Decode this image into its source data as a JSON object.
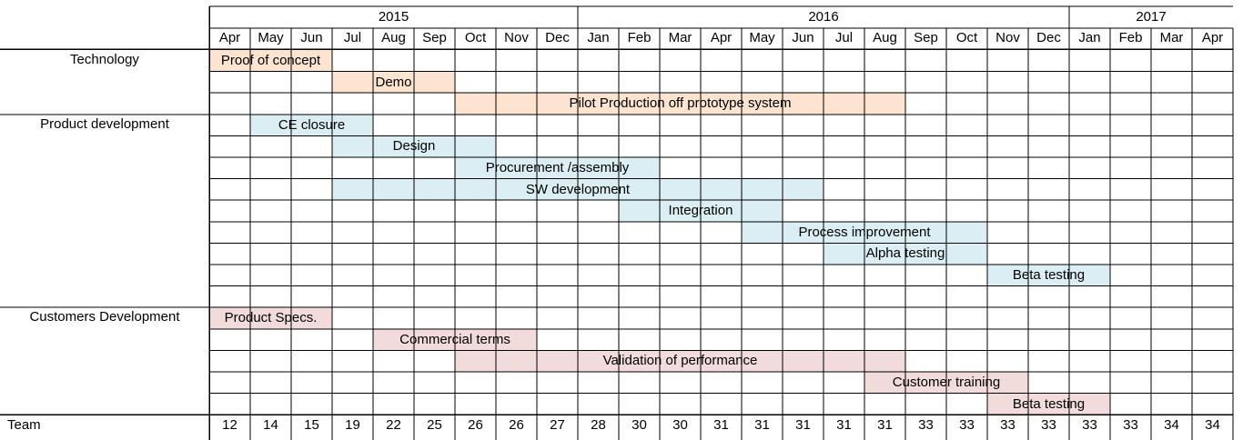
{
  "chart_data": {
    "type": "table",
    "title": "",
    "years": [
      {
        "label": "2015",
        "start": 0,
        "end": 9
      },
      {
        "label": "2016",
        "start": 9,
        "end": 21
      },
      {
        "label": "2017",
        "start": 21,
        "end": 25
      }
    ],
    "months": [
      "Apr",
      "May",
      "Jun",
      "Jul",
      "Aug",
      "Sep",
      "Oct",
      "Nov",
      "Dec",
      "Jan",
      "Feb",
      "Mar",
      "Apr",
      "May",
      "Jun",
      "Jul",
      "Aug",
      "Sep",
      "Oct",
      "Nov",
      "Dec",
      "Jan",
      "Feb",
      "Mar",
      "Apr"
    ],
    "sections": [
      {
        "label": "Technology",
        "row": 0
      },
      {
        "label": "Product development",
        "row": 3
      },
      {
        "label": "Customers Development",
        "row": 12
      }
    ],
    "tasks": [
      {
        "label": "Proof of concept",
        "row": 0,
        "start": 0,
        "end": 3,
        "group": "technology"
      },
      {
        "label": "Demo",
        "row": 1,
        "start": 3,
        "end": 6,
        "group": "technology"
      },
      {
        "label": "Pilot Production off prototype system",
        "row": 2,
        "start": 6,
        "end": 17,
        "group": "technology"
      },
      {
        "label": "CE closure",
        "row": 3,
        "start": 1,
        "end": 4,
        "group": "product"
      },
      {
        "label": "Design",
        "row": 4,
        "start": 3,
        "end": 7,
        "group": "product"
      },
      {
        "label": "Procurement /assembly",
        "row": 5,
        "start": 6,
        "end": 11,
        "group": "product"
      },
      {
        "label": "SW development",
        "row": 6,
        "start": 3,
        "end": 15,
        "group": "product"
      },
      {
        "label": "Integration",
        "row": 7,
        "start": 10,
        "end": 14,
        "group": "product"
      },
      {
        "label": "Process improvement",
        "row": 8,
        "start": 13,
        "end": 19,
        "group": "product"
      },
      {
        "label": "Alpha testing",
        "row": 9,
        "start": 15,
        "end": 19,
        "group": "product"
      },
      {
        "label": "Beta testing",
        "row": 10,
        "start": 19,
        "end": 22,
        "group": "product"
      },
      {
        "label": "Product Specs.",
        "row": 12,
        "start": 0,
        "end": 3,
        "group": "customer"
      },
      {
        "label": "Commercial terms",
        "row": 13,
        "start": 4,
        "end": 8,
        "group": "customer"
      },
      {
        "label": "Validation of performance",
        "row": 14,
        "start": 6,
        "end": 17,
        "group": "customer"
      },
      {
        "label": "Customer training",
        "row": 15,
        "start": 16,
        "end": 20,
        "group": "customer"
      },
      {
        "label": "Beta testing",
        "row": 16,
        "start": 19,
        "end": 22,
        "group": "customer"
      }
    ],
    "team": {
      "label": "Team",
      "values": [
        12,
        14,
        15,
        19,
        22,
        25,
        26,
        26,
        27,
        28,
        30,
        30,
        31,
        31,
        31,
        31,
        31,
        33,
        33,
        33,
        33,
        33,
        33,
        34,
        34
      ]
    },
    "colors": {
      "technology": "#fde4d0",
      "product": "#daeef3",
      "customer": "#f2dcdb",
      "grid": "#000000"
    }
  }
}
